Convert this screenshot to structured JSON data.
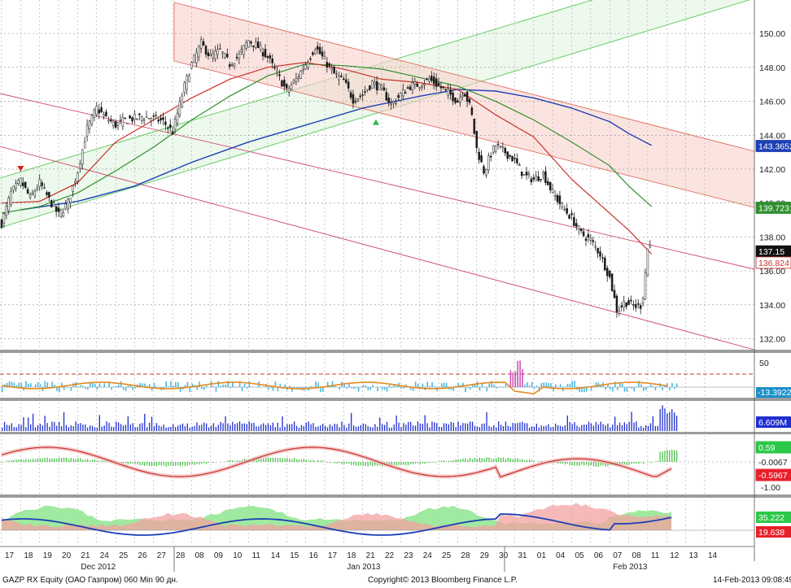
{
  "footer": {
    "left": "GAZP RX Equity (ОАО Газпром) 060 Min 90 дн.",
    "center": "Copyright© 2013 Bloomberg Finance L.P.",
    "right": "14-Feb-2013 09:08:49"
  },
  "chart_data": {
    "type": "candlestick",
    "x_days": [
      "17",
      "18",
      "19",
      "20",
      "21",
      "24",
      "25",
      "26",
      "27",
      "28",
      "08",
      "09",
      "10",
      "11",
      "14",
      "15",
      "16",
      "17",
      "18",
      "21",
      "22",
      "23",
      "24",
      "25",
      "28",
      "29",
      "30",
      "31",
      "01",
      "04",
      "05",
      "06",
      "07",
      "08",
      "11",
      "12",
      "13",
      "14"
    ],
    "month_labels": [
      {
        "label": "Dec 2012",
        "day_index": 4
      },
      {
        "label": "Jan 2013",
        "day_index": 18
      },
      {
        "label": "Feb 2013",
        "day_index": 32
      }
    ],
    "price_axis": {
      "ticks": [
        "150.00",
        "148.00",
        "146.00",
        "144.00",
        "142.00",
        "140.00",
        "138.00",
        "136.00",
        "134.00",
        "132.00"
      ],
      "min": 131.5,
      "max": 151.3
    },
    "price_badges": [
      {
        "label": "143.3652",
        "series": "ma_long",
        "color": "#1d3fb5"
      },
      {
        "label": "139.7231",
        "series": "ma_mid",
        "color": "#2f8f2f"
      },
      {
        "label": "137.15",
        "series": "last",
        "color": "#111111"
      },
      {
        "label": "136.824",
        "series": "ma_short",
        "color": "#c8312b"
      }
    ],
    "price_path": [
      [
        0,
        138.8
      ],
      [
        0.5,
        140.6
      ],
      [
        1,
        141.3
      ],
      [
        1.5,
        140.3
      ],
      [
        2,
        141.2
      ],
      [
        2.5,
        140.2
      ],
      [
        3,
        139.3
      ],
      [
        3.5,
        140.0
      ],
      [
        4,
        141.9
      ],
      [
        4.5,
        144.4
      ],
      [
        5,
        145.6
      ],
      [
        5.5,
        145.0
      ],
      [
        6,
        144.6
      ],
      [
        6.5,
        144.9
      ],
      [
        7,
        145.0
      ],
      [
        7.5,
        145.1
      ],
      [
        8,
        145.0
      ],
      [
        8.5,
        144.8
      ],
      [
        9,
        144.2
      ],
      [
        9.6,
        146.8
      ],
      [
        10,
        148.2
      ],
      [
        10.5,
        149.4
      ],
      [
        11,
        148.6
      ],
      [
        11.5,
        149.0
      ],
      [
        12,
        148.2
      ],
      [
        12.5,
        148.7
      ],
      [
        13,
        149.6
      ],
      [
        13.5,
        149.2
      ],
      [
        14,
        148.6
      ],
      [
        14.5,
        147.6
      ],
      [
        15,
        146.6
      ],
      [
        15.5,
        147.3
      ],
      [
        16,
        148.2
      ],
      [
        16.5,
        149.2
      ],
      [
        17,
        148.4
      ],
      [
        17.5,
        147.6
      ],
      [
        18,
        147.2
      ],
      [
        18.5,
        146.1
      ],
      [
        19,
        146.4
      ],
      [
        19.5,
        147.1
      ],
      [
        20,
        146.7
      ],
      [
        20.5,
        145.8
      ],
      [
        21,
        146.4
      ],
      [
        21.5,
        146.9
      ],
      [
        22,
        147.0
      ],
      [
        22.5,
        147.3
      ],
      [
        23,
        146.9
      ],
      [
        23.5,
        146.5
      ],
      [
        24,
        146.0
      ],
      [
        24.3,
        146.7
      ],
      [
        24.7,
        145.5
      ],
      [
        25,
        143.2
      ],
      [
        25.4,
        141.8
      ],
      [
        25.7,
        142.8
      ],
      [
        26,
        143.4
      ],
      [
        26.5,
        143.0
      ],
      [
        27,
        142.5
      ],
      [
        27.5,
        141.6
      ],
      [
        28,
        141.4
      ],
      [
        28.5,
        141.7
      ],
      [
        29,
        140.6
      ],
      [
        29.5,
        139.8
      ],
      [
        30,
        139.1
      ],
      [
        30.5,
        138.2
      ],
      [
        31,
        137.8
      ],
      [
        31.5,
        137.0
      ],
      [
        32,
        135.6
      ],
      [
        32.4,
        133.6
      ],
      [
        32.8,
        134.2
      ],
      [
        33.3,
        133.9
      ],
      [
        33.7,
        134.0
      ],
      [
        34.0,
        137.3
      ],
      [
        34.2,
        137.6
      ]
    ],
    "ma_short_path": [
      [
        0,
        140.0
      ],
      [
        2,
        140.1
      ],
      [
        4,
        141.2
      ],
      [
        6,
        143.6
      ],
      [
        8,
        144.9
      ],
      [
        10,
        146.2
      ],
      [
        12,
        147.3
      ],
      [
        14,
        148.0
      ],
      [
        16,
        148.3
      ],
      [
        18,
        147.9
      ],
      [
        20,
        147.3
      ],
      [
        22,
        147.1
      ],
      [
        24,
        146.7
      ],
      [
        26,
        145.2
      ],
      [
        28,
        143.9
      ],
      [
        30,
        141.4
      ],
      [
        32,
        139.4
      ],
      [
        33,
        138.4
      ],
      [
        34.2,
        137.0
      ]
    ],
    "ma_mid_path": [
      [
        0,
        139.4
      ],
      [
        2,
        139.8
      ],
      [
        4,
        140.6
      ],
      [
        6,
        141.9
      ],
      [
        8,
        143.3
      ],
      [
        10,
        144.9
      ],
      [
        12,
        146.3
      ],
      [
        14,
        147.5
      ],
      [
        16,
        148.2
      ],
      [
        18,
        148.1
      ],
      [
        20,
        147.9
      ],
      [
        22,
        147.4
      ],
      [
        24,
        146.9
      ],
      [
        26,
        146.0
      ],
      [
        28,
        144.9
      ],
      [
        30,
        143.6
      ],
      [
        32,
        142.2
      ],
      [
        33,
        141.0
      ],
      [
        34.2,
        139.8
      ]
    ],
    "ma_long_path": [
      [
        1,
        139.6
      ],
      [
        4,
        140.1
      ],
      [
        7,
        141.0
      ],
      [
        10,
        142.4
      ],
      [
        13,
        143.6
      ],
      [
        16,
        144.6
      ],
      [
        19,
        145.6
      ],
      [
        22,
        146.3
      ],
      [
        24,
        146.7
      ],
      [
        26,
        146.6
      ],
      [
        28,
        146.2
      ],
      [
        30,
        145.6
      ],
      [
        32,
        144.8
      ],
      [
        33,
        144.1
      ],
      [
        34.2,
        143.4
      ]
    ],
    "markers": [
      {
        "type": "down",
        "color": "#d9261c",
        "day": 1,
        "price": 142.0
      },
      {
        "type": "up",
        "color": "#2db84d",
        "day": 19.7,
        "price": 144.8
      }
    ],
    "osc1": {
      "ticks": [
        "50"
      ],
      "badge": "-13.3922",
      "badge_color": "#1e90c8"
    },
    "volume": {
      "badge": "6.609M",
      "badge_color": "#1f2fd0"
    },
    "osc3": {
      "ticks": [
        "0.59",
        "-0.0067",
        "-0.5967",
        "-1.00"
      ],
      "badge_colors": [
        "#2cc84a",
        "#ffffff",
        "#e8202a"
      ]
    },
    "osc4": {
      "ticks": [
        "35.222",
        "19.638"
      ],
      "badge_colors": [
        "#2cc84a",
        "#e8202a"
      ]
    }
  }
}
